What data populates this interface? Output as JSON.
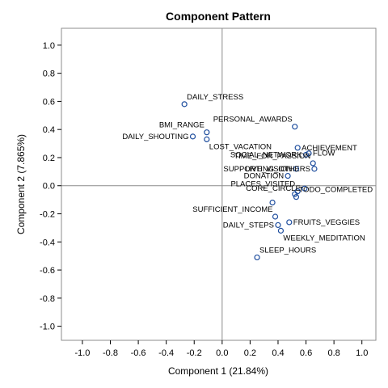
{
  "chart_data": {
    "type": "scatter",
    "title": "Component Pattern",
    "xlabel": "Component 1 (21.84%)",
    "ylabel": "Component 2 (7.865%)",
    "xlim": [
      -1.15,
      1.1
    ],
    "ylim": [
      -1.1,
      1.12
    ],
    "xticks": [
      "-1.0",
      "-0.8",
      "-0.6",
      "-0.4",
      "-0.2",
      "0.0",
      "0.2",
      "0.4",
      "0.6",
      "0.8",
      "1.0"
    ],
    "yticks": [
      "1.0",
      "0.8",
      "0.6",
      "0.4",
      "0.2",
      "0.0",
      "-0.2",
      "-0.4",
      "-0.6",
      "-0.8",
      "-1.0"
    ],
    "reference_lines": {
      "x": 0,
      "y": 0
    },
    "grid": false,
    "marker_color": "#1f4e9e",
    "points": [
      {
        "label": "DAILY_STRESS",
        "x": -0.27,
        "y": 0.58,
        "label_pos": "top-right"
      },
      {
        "label": "PERSONAL_AWARDS",
        "x": 0.52,
        "y": 0.42,
        "label_pos": "top-left"
      },
      {
        "label": "BMI_RANGE",
        "x": -0.11,
        "y": 0.38,
        "label_pos": "top-left"
      },
      {
        "label": "DAILY_SHOUTING",
        "x": -0.21,
        "y": 0.35,
        "label_pos": "left"
      },
      {
        "label": "LOST_VACATION",
        "x": -0.11,
        "y": 0.33,
        "label_pos": "bottom-right"
      },
      {
        "label": "ACHIEVEMENT",
        "x": 0.54,
        "y": 0.27,
        "label_pos": "right"
      },
      {
        "label": "SOCIAL_NETWORK",
        "x": 0.6,
        "y": 0.22,
        "label_pos": "left"
      },
      {
        "label": "FLOW",
        "x": 0.62,
        "y": 0.23,
        "label_pos": "right"
      },
      {
        "label": "TIME_FOR_PASSION",
        "x": 0.65,
        "y": 0.16,
        "label_pos": "top-left"
      },
      {
        "label": "SUPPORTING_OTHERS",
        "x": 0.66,
        "y": 0.12,
        "label_pos": "left"
      },
      {
        "label": "LIVE_VISION",
        "x": 0.53,
        "y": 0.12,
        "label_pos": "left"
      },
      {
        "label": "DONATION",
        "x": 0.47,
        "y": 0.07,
        "label_pos": "left"
      },
      {
        "label": "PLACES_VISITED",
        "x": 0.54,
        "y": -0.04,
        "label_pos": "top-left"
      },
      {
        "label": "CORE_CIRCLE",
        "x": 0.59,
        "y": -0.02,
        "label_pos": "left"
      },
      {
        "label": "TODO_COMPLETED",
        "x": 0.53,
        "y": -0.08,
        "label_pos": "top-right"
      },
      {
        "label": "",
        "x": 0.52,
        "y": -0.06,
        "label_pos": "none"
      },
      {
        "label": "",
        "x": 0.36,
        "y": -0.12,
        "label_pos": "none"
      },
      {
        "label": "SUFFICIENT_INCOME",
        "x": 0.38,
        "y": -0.22,
        "label_pos": "top-left"
      },
      {
        "label": "FRUITS_VEGGIES",
        "x": 0.48,
        "y": -0.26,
        "label_pos": "right"
      },
      {
        "label": "DAILY_STEPS",
        "x": 0.4,
        "y": -0.28,
        "label_pos": "left"
      },
      {
        "label": "WEEKLY_MEDITATION",
        "x": 0.42,
        "y": -0.32,
        "label_pos": "bottom-right"
      },
      {
        "label": "SLEEP_HOURS",
        "x": 0.25,
        "y": -0.51,
        "label_pos": "top-right"
      }
    ]
  }
}
